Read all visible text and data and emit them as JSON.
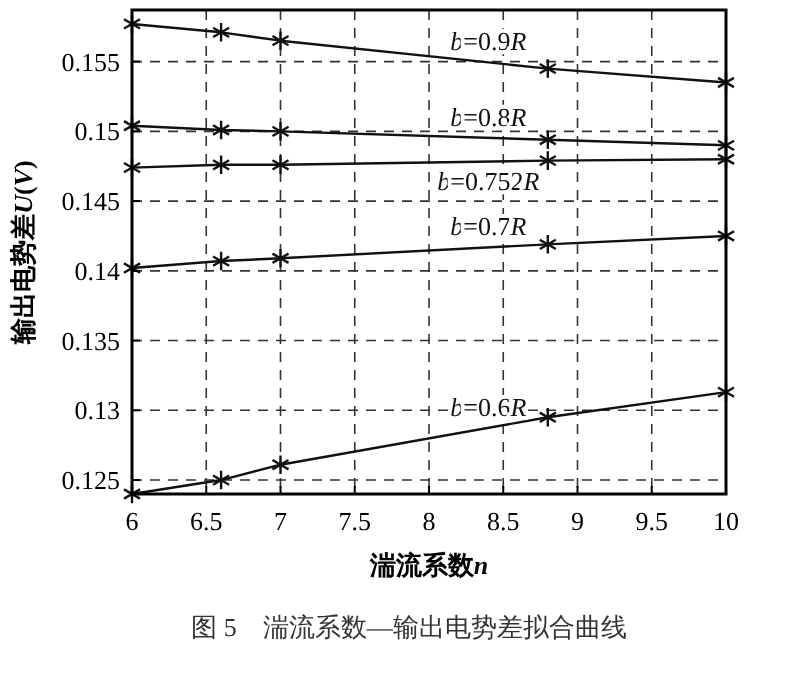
{
  "chart_data": {
    "type": "line",
    "title": "图 5　湍流系数—输出电势差拟合曲线",
    "xlabel": "湍流系数$_{}$n",
    "ylabel": "输出电势差U(V)",
    "x": [
      6,
      6.6,
      7,
      8.8,
      10
    ],
    "series": [
      {
        "name": "b=0.9R",
        "color": "#111111",
        "values": [
          0.1577,
          0.1571,
          0.1565,
          0.1545,
          0.1535
        ]
      },
      {
        "name": "b=0.8R",
        "color": "#111111",
        "values": [
          0.1504,
          0.1501,
          0.15,
          0.1494,
          0.149
        ]
      },
      {
        "name": "b=0.752R",
        "color": "#111111",
        "values": [
          0.1474,
          0.1476,
          0.1476,
          0.1479,
          0.148
        ]
      },
      {
        "name": "b=0.7R",
        "color": "#111111",
        "values": [
          0.1402,
          0.1407,
          0.1409,
          0.1419,
          0.1425
        ]
      },
      {
        "name": "b=0.6R",
        "color": "#111111",
        "values": [
          0.124,
          0.125,
          0.1261,
          0.1295,
          0.1313
        ]
      }
    ],
    "xlim": [
      6,
      10
    ],
    "ylim": [
      0.124,
      0.1587
    ],
    "xticks": [
      6,
      6.5,
      7,
      7.5,
      8,
      8.5,
      9,
      9.5,
      10
    ],
    "yticks": [
      0.125,
      0.13,
      0.135,
      0.14,
      0.145,
      0.15,
      0.155
    ],
    "grid": true,
    "marker": "cross",
    "line_style": "solid"
  }
}
